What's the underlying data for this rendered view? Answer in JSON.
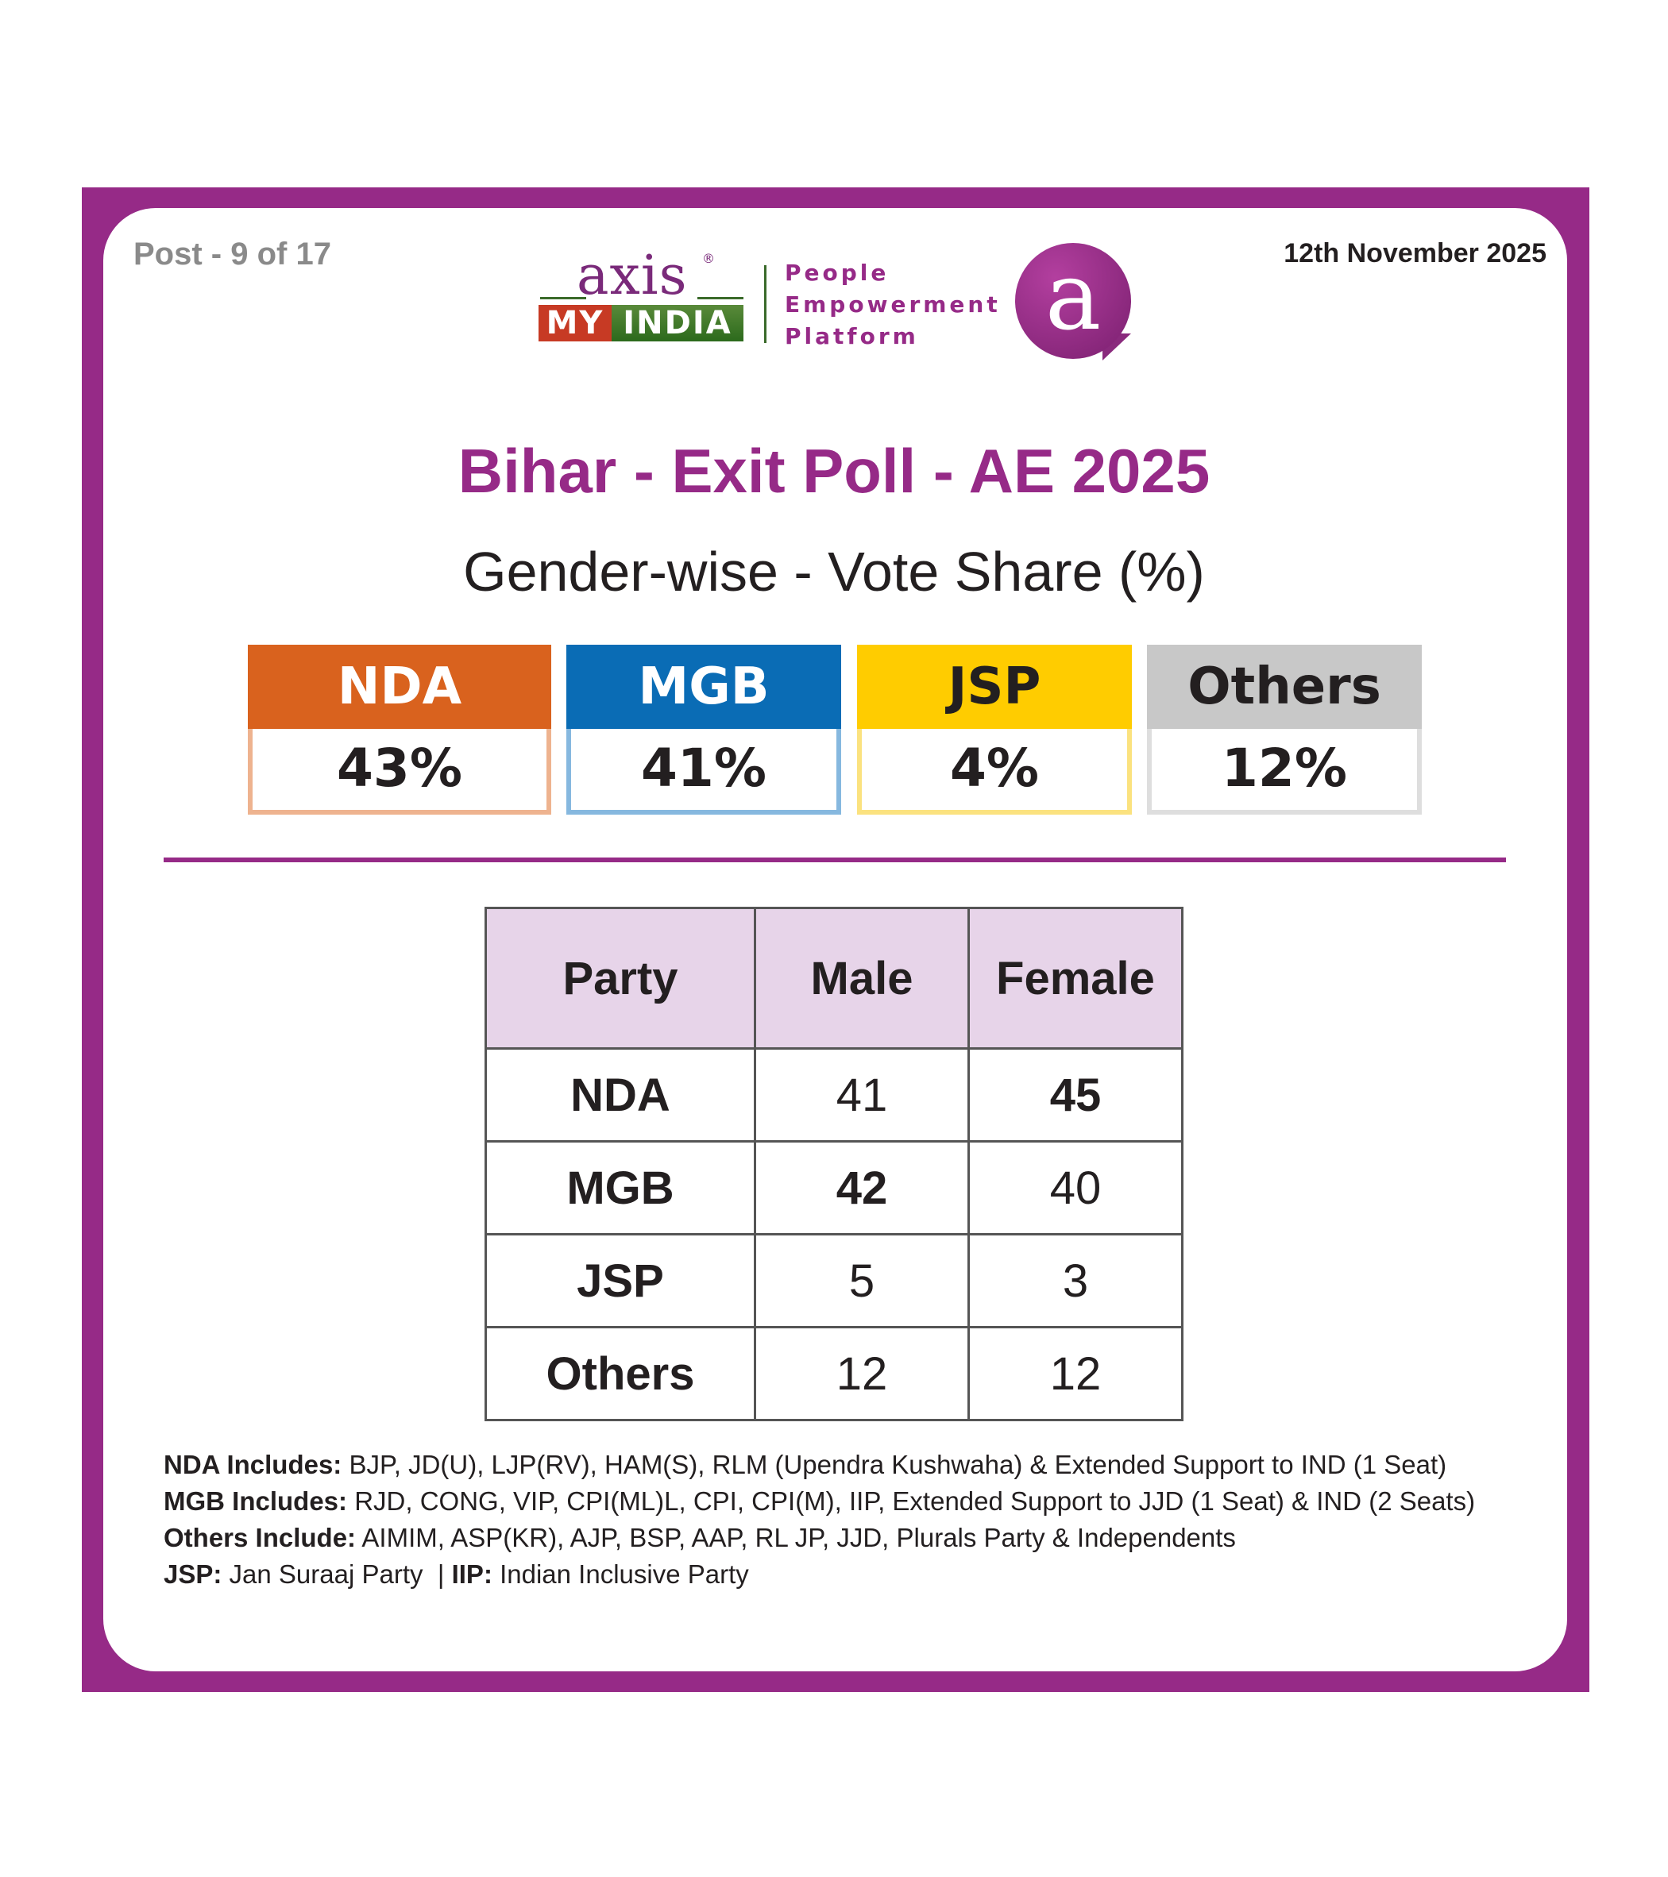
{
  "header": {
    "post_label": "Post - 9 of 17",
    "date": "12th November 2025"
  },
  "logo": {
    "axis": "axis",
    "registered": "®",
    "my": "MY",
    "india": "INDIA",
    "tagline": [
      "People",
      "Empowerment",
      "Platform"
    ],
    "badge_letter": "a"
  },
  "title": "Bihar - Exit Poll - AE 2025",
  "subtitle": "Gender-wise - Vote Share (%)",
  "overall_share": [
    {
      "party": "NDA",
      "value": "43%",
      "color": "#d9621e",
      "border": "#eeb38f",
      "text_color": "#ffffff"
    },
    {
      "party": "MGB",
      "value": "41%",
      "color": "#0a6cb5",
      "border": "#86b8df",
      "text_color": "#ffffff"
    },
    {
      "party": "JSP",
      "value": "4%",
      "color": "#ffcc00",
      "border": "#fbe27f",
      "text_color": "#231f20"
    },
    {
      "party": "Others",
      "value": "12%",
      "color": "#c8c8c8",
      "border": "#dedede",
      "text_color": "#231f20"
    }
  ],
  "chart_data": {
    "type": "table",
    "title": "Gender-wise - Vote Share (%)",
    "columns": [
      "Party",
      "Male",
      "Female"
    ],
    "rows": [
      {
        "party": "NDA",
        "male": 41,
        "female": 45,
        "bold": "female"
      },
      {
        "party": "MGB",
        "male": 42,
        "female": 40,
        "bold": "male"
      },
      {
        "party": "JSP",
        "male": 5,
        "female": 3,
        "bold": ""
      },
      {
        "party": "Others",
        "male": 12,
        "female": 12,
        "bold": ""
      }
    ],
    "overall": {
      "NDA": 43,
      "MGB": 41,
      "JSP": 4,
      "Others": 12
    }
  },
  "notes": [
    {
      "label": "NDA Includes:",
      "text": " BJP, JD(U), LJP(RV), HAM(S), RLM (Upendra Kushwaha) & Extended Support to IND (1 Seat)"
    },
    {
      "label": "MGB Includes:",
      "text": " RJD, CONG, VIP, CPI(ML)L, CPI, CPI(M), IIP, Extended Support to JJD (1 Seat) & IND (2 Seats)"
    },
    {
      "label": "Others Include:",
      "text": " AIMIM, ASP(KR), AJP, BSP, AAP, RL JP, JJD, Plurals Party & Independents"
    }
  ],
  "notes_last": {
    "label1": "JSP:",
    "text1": " Jan Suraaj Party ",
    "sep": " | ",
    "label2": "IIP:",
    "text2": " Indian Inclusive Party"
  }
}
